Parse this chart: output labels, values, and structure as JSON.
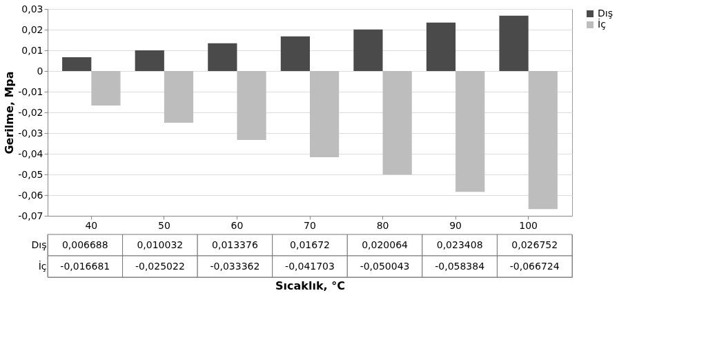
{
  "chart_data": {
    "type": "bar",
    "xlabel": "Sıcaklık, °C",
    "ylabel": "Gerilme, Mpa",
    "categories": [
      "40",
      "50",
      "60",
      "70",
      "80",
      "90",
      "100"
    ],
    "series": [
      {
        "name": "Dış",
        "color": "#4a4a4a",
        "values": [
          0.006688,
          0.010032,
          0.013376,
          0.01672,
          0.020064,
          0.023408,
          0.026752
        ],
        "value_labels": [
          "0,006688",
          "0,010032",
          "0,013376",
          "0,01672",
          "0,020064",
          "0,023408",
          "0,026752"
        ]
      },
      {
        "name": "İç",
        "color": "#bdbdbd",
        "values": [
          -0.016681,
          -0.025022,
          -0.033362,
          -0.041703,
          -0.050043,
          -0.058384,
          -0.066724
        ],
        "value_labels": [
          "-0,016681",
          "-0,025022",
          "-0,033362",
          "-0,041703",
          "-0,050043",
          "-0,058384",
          "-0,066724"
        ]
      }
    ],
    "ylim": [
      -0.07,
      0.03
    ],
    "yticks": [
      {
        "value": 0.03,
        "label": "0,03"
      },
      {
        "value": 0.02,
        "label": "0,02"
      },
      {
        "value": 0.01,
        "label": "0,01"
      },
      0,
      {
        "value": -0.01,
        "label": "-0,01"
      },
      {
        "value": -0.02,
        "label": "-0,02"
      },
      {
        "value": -0.03,
        "label": "-0,03"
      },
      {
        "value": -0.04,
        "label": "-0,04"
      },
      {
        "value": -0.05,
        "label": "-0,05"
      },
      {
        "value": -0.06,
        "label": "-0,06"
      },
      {
        "value": -0.07,
        "label": "-0,07"
      }
    ],
    "grid": "y",
    "legend": "right"
  }
}
